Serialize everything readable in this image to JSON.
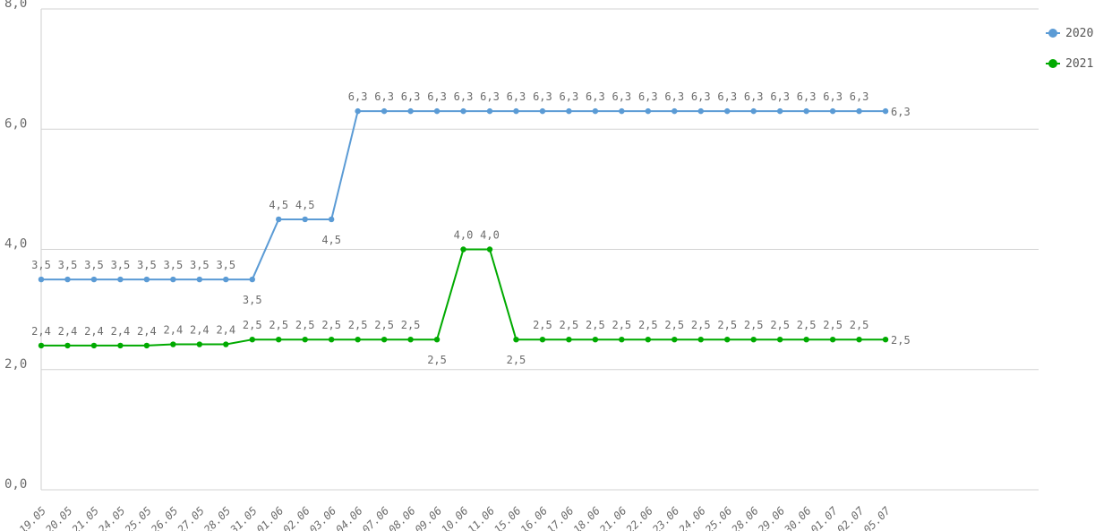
{
  "chart_data": {
    "type": "line",
    "title": "",
    "xlabel": "",
    "ylabel": "",
    "ylim": [
      0,
      8
    ],
    "yticks": [
      "0,0",
      "2,0",
      "4,0",
      "6,0",
      "8,0"
    ],
    "grid": "horizontal",
    "legend_position": "top-right",
    "categories": [
      "19.05",
      "20.05",
      "21.05",
      "24.05",
      "25.05",
      "26.05",
      "27.05",
      "28.05",
      "31.05",
      "01.06",
      "02.06",
      "03.06",
      "04.06",
      "07.06",
      "08.06",
      "09.06",
      "10.06",
      "11.06",
      "15.06",
      "16.06",
      "17.06",
      "18.06",
      "21.06",
      "22.06",
      "23.06",
      "24.06",
      "25.06",
      "28.06",
      "29.06",
      "30.06",
      "01.07",
      "02.07",
      "05.07"
    ],
    "series": [
      {
        "name": "2020",
        "color": "#5b9bd5",
        "values": [
          3.5,
          3.5,
          3.5,
          3.5,
          3.5,
          3.5,
          3.5,
          3.5,
          3.5,
          4.5,
          4.5,
          4.5,
          6.3,
          6.3,
          6.3,
          6.3,
          6.3,
          6.3,
          6.3,
          6.3,
          6.3,
          6.3,
          6.3,
          6.3,
          6.3,
          6.3,
          6.3,
          6.3,
          6.3,
          6.3,
          6.3,
          6.3,
          6.3
        ],
        "labels": [
          "3,5",
          "3,5",
          "3,5",
          "3,5",
          "3,5",
          "3,5",
          "3,5",
          "3,5",
          "3,5",
          "4,5",
          "4,5",
          "4,5",
          "6,3",
          "6,3",
          "6,3",
          "6,3",
          "6,3",
          "6,3",
          "6,3",
          "6,3",
          "6,3",
          "6,3",
          "6,3",
          "6,3",
          "6,3",
          "6,3",
          "6,3",
          "6,3",
          "6,3",
          "6,3",
          "6,3",
          "6,3",
          "6,3"
        ],
        "label_pos": [
          "a",
          "a",
          "a",
          "a",
          "a",
          "a",
          "a",
          "a",
          "b",
          "a",
          "a",
          "b",
          "a",
          "a",
          "a",
          "a",
          "a",
          "a",
          "a",
          "a",
          "a",
          "a",
          "a",
          "a",
          "a",
          "a",
          "a",
          "a",
          "a",
          "a",
          "a",
          "a",
          "r"
        ]
      },
      {
        "name": "2021",
        "color": "#00aa00",
        "values": [
          2.4,
          2.4,
          2.4,
          2.4,
          2.4,
          2.42,
          2.42,
          2.42,
          2.5,
          2.5,
          2.5,
          2.5,
          2.5,
          2.5,
          2.5,
          2.5,
          4.0,
          4.0,
          2.5,
          2.5,
          2.5,
          2.5,
          2.5,
          2.5,
          2.5,
          2.5,
          2.5,
          2.5,
          2.5,
          2.5,
          2.5,
          2.5,
          2.5
        ],
        "labels": [
          "2,4",
          "2,4",
          "2,4",
          "2,4",
          "2,4",
          "2,4",
          "2,4",
          "2,4",
          "2,5",
          "2,5",
          "2,5",
          "2,5",
          "2,5",
          "2,5",
          "2,5",
          "2,5",
          "4,0",
          "4,0",
          "2,5",
          "2,5",
          "2,5",
          "2,5",
          "2,5",
          "2,5",
          "2,5",
          "2,5",
          "2,5",
          "2,5",
          "2,5",
          "2,5",
          "2,5",
          "2,5",
          "2,5"
        ],
        "label_pos": [
          "a",
          "a",
          "a",
          "a",
          "a",
          "a",
          "a",
          "a",
          "a",
          "a",
          "a",
          "a",
          "a",
          "a",
          "a",
          "b",
          "a",
          "a",
          "b",
          "a",
          "a",
          "a",
          "a",
          "a",
          "a",
          "a",
          "a",
          "a",
          "a",
          "a",
          "a",
          "a",
          "r"
        ]
      }
    ]
  }
}
